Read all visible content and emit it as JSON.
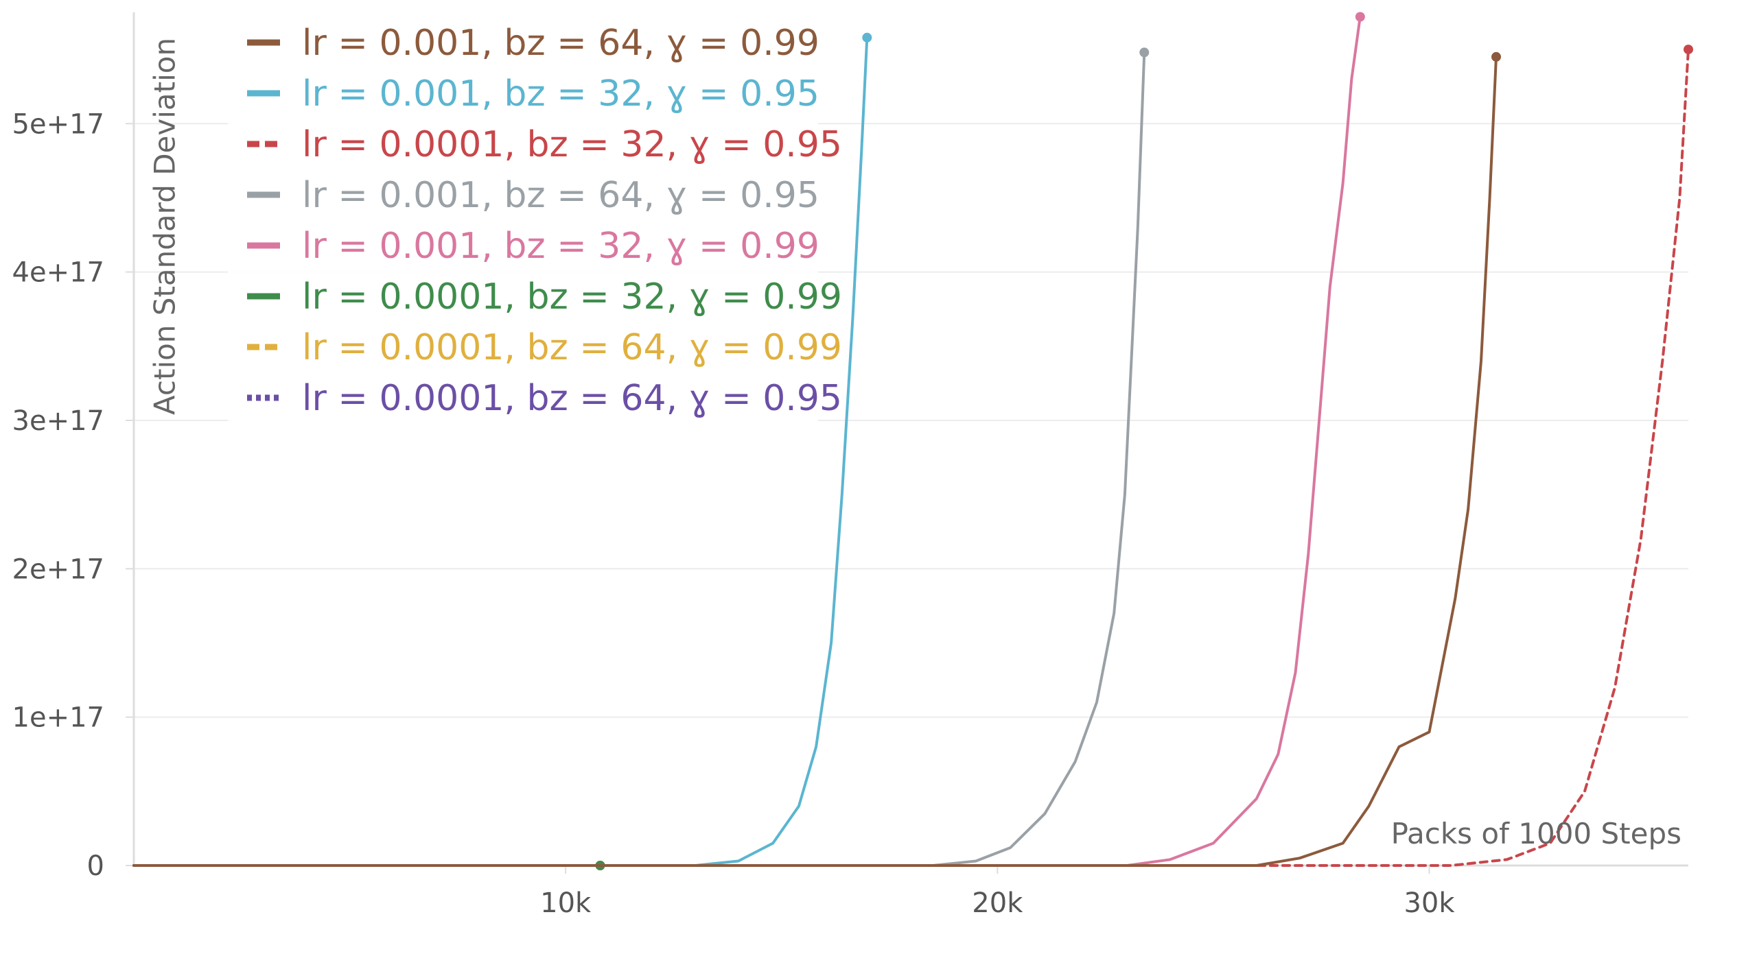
{
  "chart_data": {
    "type": "line",
    "title": "",
    "xlabel": "Packs of 1000 Steps",
    "ylabel": "Action Standard Deviation",
    "xlim": [
      0,
      36000
    ],
    "ylim": [
      0,
      5.75e+17
    ],
    "x_ticks": [
      {
        "value": 10000,
        "label": "10k"
      },
      {
        "value": 20000,
        "label": "20k"
      },
      {
        "value": 30000,
        "label": "30k"
      }
    ],
    "y_ticks": [
      {
        "value": 0,
        "label": "0"
      },
      {
        "value": 1e+17,
        "label": "1e+17"
      },
      {
        "value": 2e+17,
        "label": "2e+17"
      },
      {
        "value": 3e+17,
        "label": "3e+17"
      },
      {
        "value": 4e+17,
        "label": "4e+17"
      },
      {
        "value": 5e+17,
        "label": "5e+17"
      }
    ],
    "grid": true,
    "legend_position": "top-left",
    "series": [
      {
        "name": "lr = 0.001, bz = 64, ɣ = 0.99",
        "color": "#8c5a3c",
        "dash": "solid",
        "points": [
          [
            0,
            0
          ],
          [
            26000,
            0
          ],
          [
            27000,
            5000000000000000.0
          ],
          [
            28000,
            1.5e+16
          ],
          [
            28600,
            4e+16
          ],
          [
            29300,
            8e+16
          ],
          [
            30000,
            9e+16
          ],
          [
            30600,
            1.8e+17
          ],
          [
            30900,
            2.4e+17
          ],
          [
            31200,
            3.4e+17
          ],
          [
            31400,
            4.5e+17
          ],
          [
            31550,
            5.45e+17
          ]
        ]
      },
      {
        "name": "lr = 0.001, bz = 32, ɣ = 0.95",
        "color": "#5bb5d0",
        "dash": "solid",
        "points": [
          [
            0,
            0
          ],
          [
            13000,
            0
          ],
          [
            14000,
            3000000000000000.0
          ],
          [
            14800,
            1.5e+16
          ],
          [
            15400,
            4e+16
          ],
          [
            15800,
            8e+16
          ],
          [
            16150,
            1.5e+17
          ],
          [
            16400,
            2.5e+17
          ],
          [
            16650,
            3.7e+17
          ],
          [
            16850,
            4.8e+17
          ],
          [
            16980,
            5.58e+17
          ]
        ]
      },
      {
        "name": "lr = 0.0001, bz = 32, ɣ = 0.95",
        "color": "#c8464a",
        "dash": "dashed",
        "points": [
          [
            0,
            0
          ],
          [
            30500,
            0
          ],
          [
            31800,
            4000000000000000.0
          ],
          [
            32800,
            1.5e+16
          ],
          [
            33600,
            5e+16
          ],
          [
            34300,
            1.2e+17
          ],
          [
            34900,
            2.2e+17
          ],
          [
            35400,
            3.4e+17
          ],
          [
            35800,
            4.5e+17
          ],
          [
            36000,
            5.5e+17
          ]
        ]
      },
      {
        "name": "lr = 0.001, bz = 64, ɣ = 0.95",
        "color": "#9aa1a6",
        "dash": "solid",
        "points": [
          [
            0,
            0
          ],
          [
            18500,
            0
          ],
          [
            19500,
            3000000000000000.0
          ],
          [
            20300,
            1.2e+16
          ],
          [
            21100,
            3.5e+16
          ],
          [
            21800,
            7e+16
          ],
          [
            22300,
            1.1e+17
          ],
          [
            22700,
            1.7e+17
          ],
          [
            22950,
            2.5e+17
          ],
          [
            23100,
            3.4e+17
          ],
          [
            23250,
            4.3e+17
          ],
          [
            23400,
            5.48e+17
          ]
        ]
      },
      {
        "name": "lr = 0.001, bz = 32, ɣ = 0.99",
        "color": "#d9779f",
        "dash": "solid",
        "points": [
          [
            0,
            0
          ],
          [
            23000,
            0
          ],
          [
            24000,
            4000000000000000.0
          ],
          [
            25000,
            1.5e+16
          ],
          [
            26000,
            4.5e+16
          ],
          [
            26500,
            7.5e+16
          ],
          [
            26900,
            1.3e+17
          ],
          [
            27200,
            2.1e+17
          ],
          [
            27450,
            3e+17
          ],
          [
            27700,
            3.9e+17
          ],
          [
            28000,
            4.6e+17
          ],
          [
            28200,
            5.3e+17
          ],
          [
            28400,
            5.72e+17
          ]
        ]
      },
      {
        "name": "lr = 0.0001, bz = 32, ɣ = 0.99",
        "color": "#3f8c4c",
        "dash": "solid",
        "points": [
          [
            0,
            0
          ],
          [
            10800,
            0
          ]
        ]
      },
      {
        "name": "lr = 0.0001, bz = 64, ɣ = 0.99",
        "color": "#e0b03e",
        "dash": "dashed",
        "points": [
          [
            0,
            0
          ],
          [
            10800,
            0
          ]
        ]
      },
      {
        "name": "lr = 0.0001, bz = 64, ɣ = 0.95",
        "color": "#6b4fa6",
        "dash": "dotted",
        "points": [
          [
            0,
            0
          ],
          [
            10800,
            0
          ]
        ]
      }
    ]
  }
}
